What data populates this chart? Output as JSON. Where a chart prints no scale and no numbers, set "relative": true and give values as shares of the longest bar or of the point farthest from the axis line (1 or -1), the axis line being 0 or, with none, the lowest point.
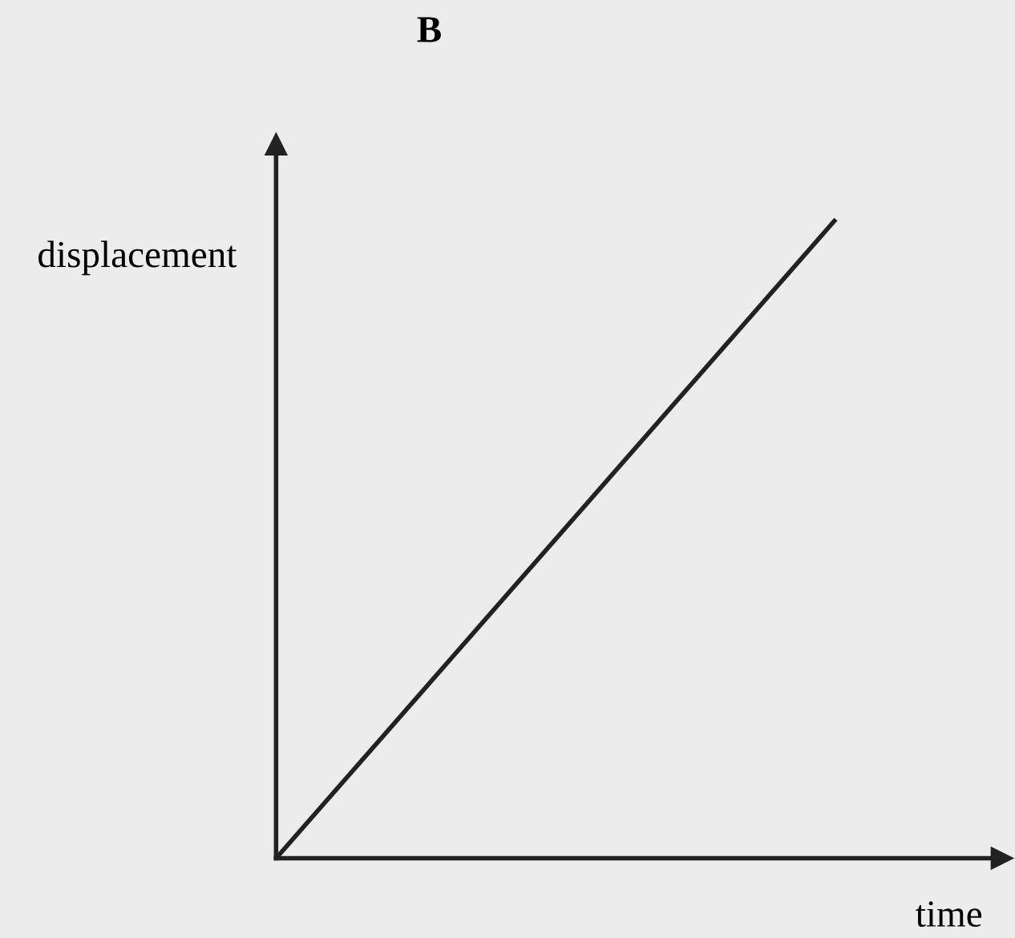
{
  "chart_data": {
    "type": "line",
    "title": "B",
    "xlabel": "time",
    "ylabel": "displacement",
    "relative": true,
    "categories": [
      null,
      null
    ],
    "series": [
      {
        "color": "#222222",
        "values": [
          0,
          1
        ]
      }
    ],
    "legend": false,
    "marker": "none",
    "line_style": "solid"
  }
}
